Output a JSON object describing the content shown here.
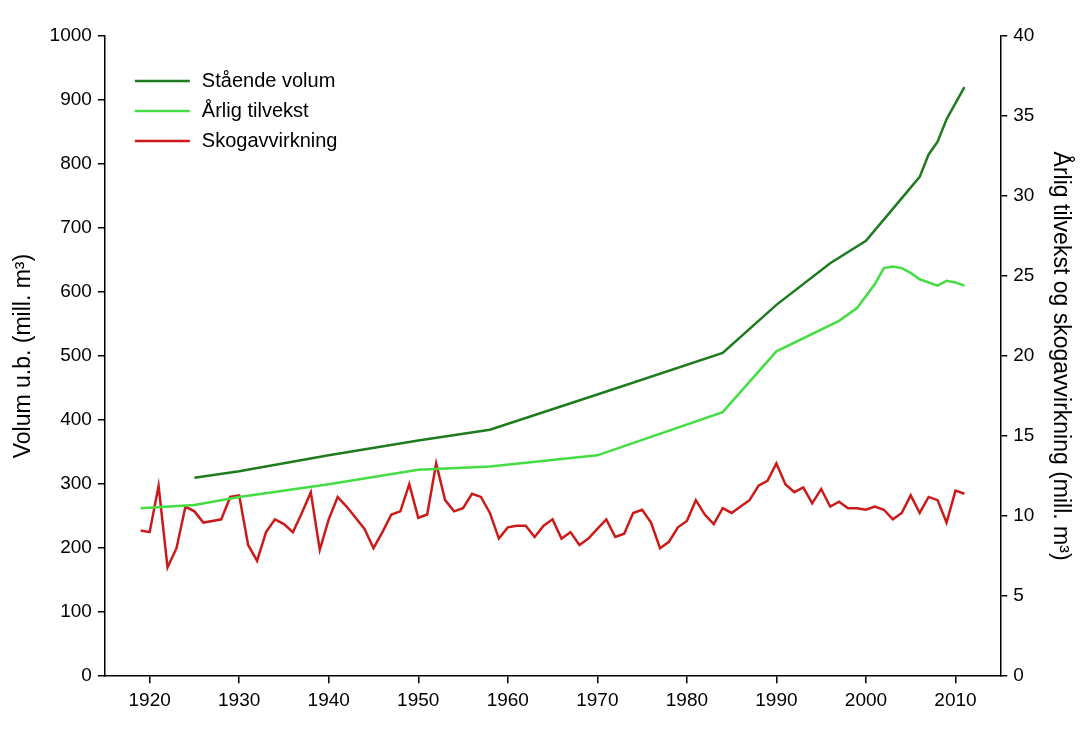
{
  "chart_data": {
    "type": "line",
    "x_label": null,
    "y_label": "Volum u.b. (mill. m³)",
    "y2_label": "Årlig tilvekst og skogavvirkning (mill. m³)",
    "xlim": [
      1915,
      2015
    ],
    "xticks": [
      1920,
      1930,
      1940,
      1950,
      1960,
      1970,
      1980,
      1990,
      2000,
      2010
    ],
    "ylim": [
      0,
      1000
    ],
    "yticks": [
      0,
      100,
      200,
      300,
      400,
      500,
      600,
      700,
      800,
      900,
      1000
    ],
    "y2lim": [
      0,
      40
    ],
    "y2ticks": [
      0,
      5,
      10,
      15,
      20,
      25,
      30,
      35,
      40
    ],
    "grid": false,
    "legend": "upper left",
    "series": [
      {
        "name": "Stående volum",
        "color": "#1e7b1e",
        "axis": "y",
        "x": [
          1925,
          1930,
          1940,
          1950,
          1958,
          1970,
          1984,
          1990,
          1996,
          2000,
          2003,
          2006,
          2007,
          2008,
          2009,
          2010,
          2011
        ],
        "values": [
          310,
          320,
          345,
          368,
          385,
          440,
          505,
          580,
          645,
          680,
          730,
          780,
          815,
          835,
          870,
          895,
          920
        ]
      },
      {
        "name": "Årlig tilvekst",
        "color": "#44dd44",
        "axis": "y2",
        "x": [
          1919,
          1925,
          1930,
          1940,
          1950,
          1958,
          1970,
          1984,
          1990,
          1997,
          1999,
          2001,
          2002,
          2003,
          2004,
          2005,
          2006,
          2008,
          2009,
          2010,
          2011
        ],
        "values": [
          10.5,
          10.7,
          11.2,
          12.0,
          12.9,
          13.1,
          13.8,
          16.5,
          20.3,
          22.2,
          23.0,
          24.5,
          25.5,
          25.6,
          25.5,
          25.2,
          24.8,
          24.4,
          24.7,
          24.6,
          24.4
        ]
      },
      {
        "name": "Skogavvirkning",
        "color": "#cc1a1a",
        "axis": "y2",
        "x": [
          1919,
          1920,
          1921,
          1922,
          1923,
          1924,
          1925,
          1926,
          1927,
          1928,
          1929,
          1930,
          1931,
          1932,
          1933,
          1934,
          1935,
          1936,
          1937,
          1938,
          1939,
          1940,
          1941,
          1942,
          1943,
          1944,
          1945,
          1946,
          1947,
          1948,
          1949,
          1950,
          1951,
          1952,
          1953,
          1954,
          1955,
          1956,
          1957,
          1958,
          1959,
          1960,
          1961,
          1962,
          1963,
          1964,
          1965,
          1966,
          1967,
          1968,
          1969,
          1970,
          1971,
          1972,
          1973,
          1974,
          1975,
          1976,
          1977,
          1978,
          1979,
          1980,
          1981,
          1982,
          1983,
          1984,
          1985,
          1986,
          1987,
          1988,
          1989,
          1990,
          1991,
          1992,
          1993,
          1994,
          1995,
          1996,
          1997,
          1998,
          1999,
          2000,
          2001,
          2002,
          2003,
          2004,
          2005,
          2006,
          2007,
          2008,
          2009,
          2010,
          2011
        ],
        "values": [
          9.1,
          9.0,
          11.9,
          6.8,
          8.0,
          10.6,
          10.3,
          9.6,
          9.7,
          9.8,
          11.2,
          11.3,
          8.2,
          7.2,
          9.0,
          9.8,
          9.5,
          9.0,
          10.2,
          11.5,
          7.9,
          9.8,
          11.2,
          10.6,
          9.9,
          9.2,
          8.0,
          9.0,
          10.1,
          10.3,
          12.0,
          9.9,
          10.1,
          13.3,
          11.0,
          10.3,
          10.5,
          11.4,
          11.2,
          10.2,
          8.6,
          9.3,
          9.4,
          9.4,
          8.7,
          9.4,
          9.8,
          8.6,
          9.0,
          8.2,
          8.6,
          9.2,
          9.8,
          8.7,
          8.9,
          10.2,
          10.4,
          9.6,
          8.0,
          8.4,
          9.3,
          9.7,
          11.0,
          10.1,
          9.5,
          10.5,
          10.2,
          10.6,
          11.0,
          11.9,
          12.2,
          13.3,
          12.0,
          11.5,
          11.8,
          10.8,
          11.7,
          10.6,
          10.9,
          10.5,
          10.5,
          10.4,
          10.6,
          10.4,
          9.8,
          10.2,
          11.3,
          10.2,
          11.2,
          11.0,
          9.6,
          11.6,
          11.4
        ]
      }
    ]
  }
}
